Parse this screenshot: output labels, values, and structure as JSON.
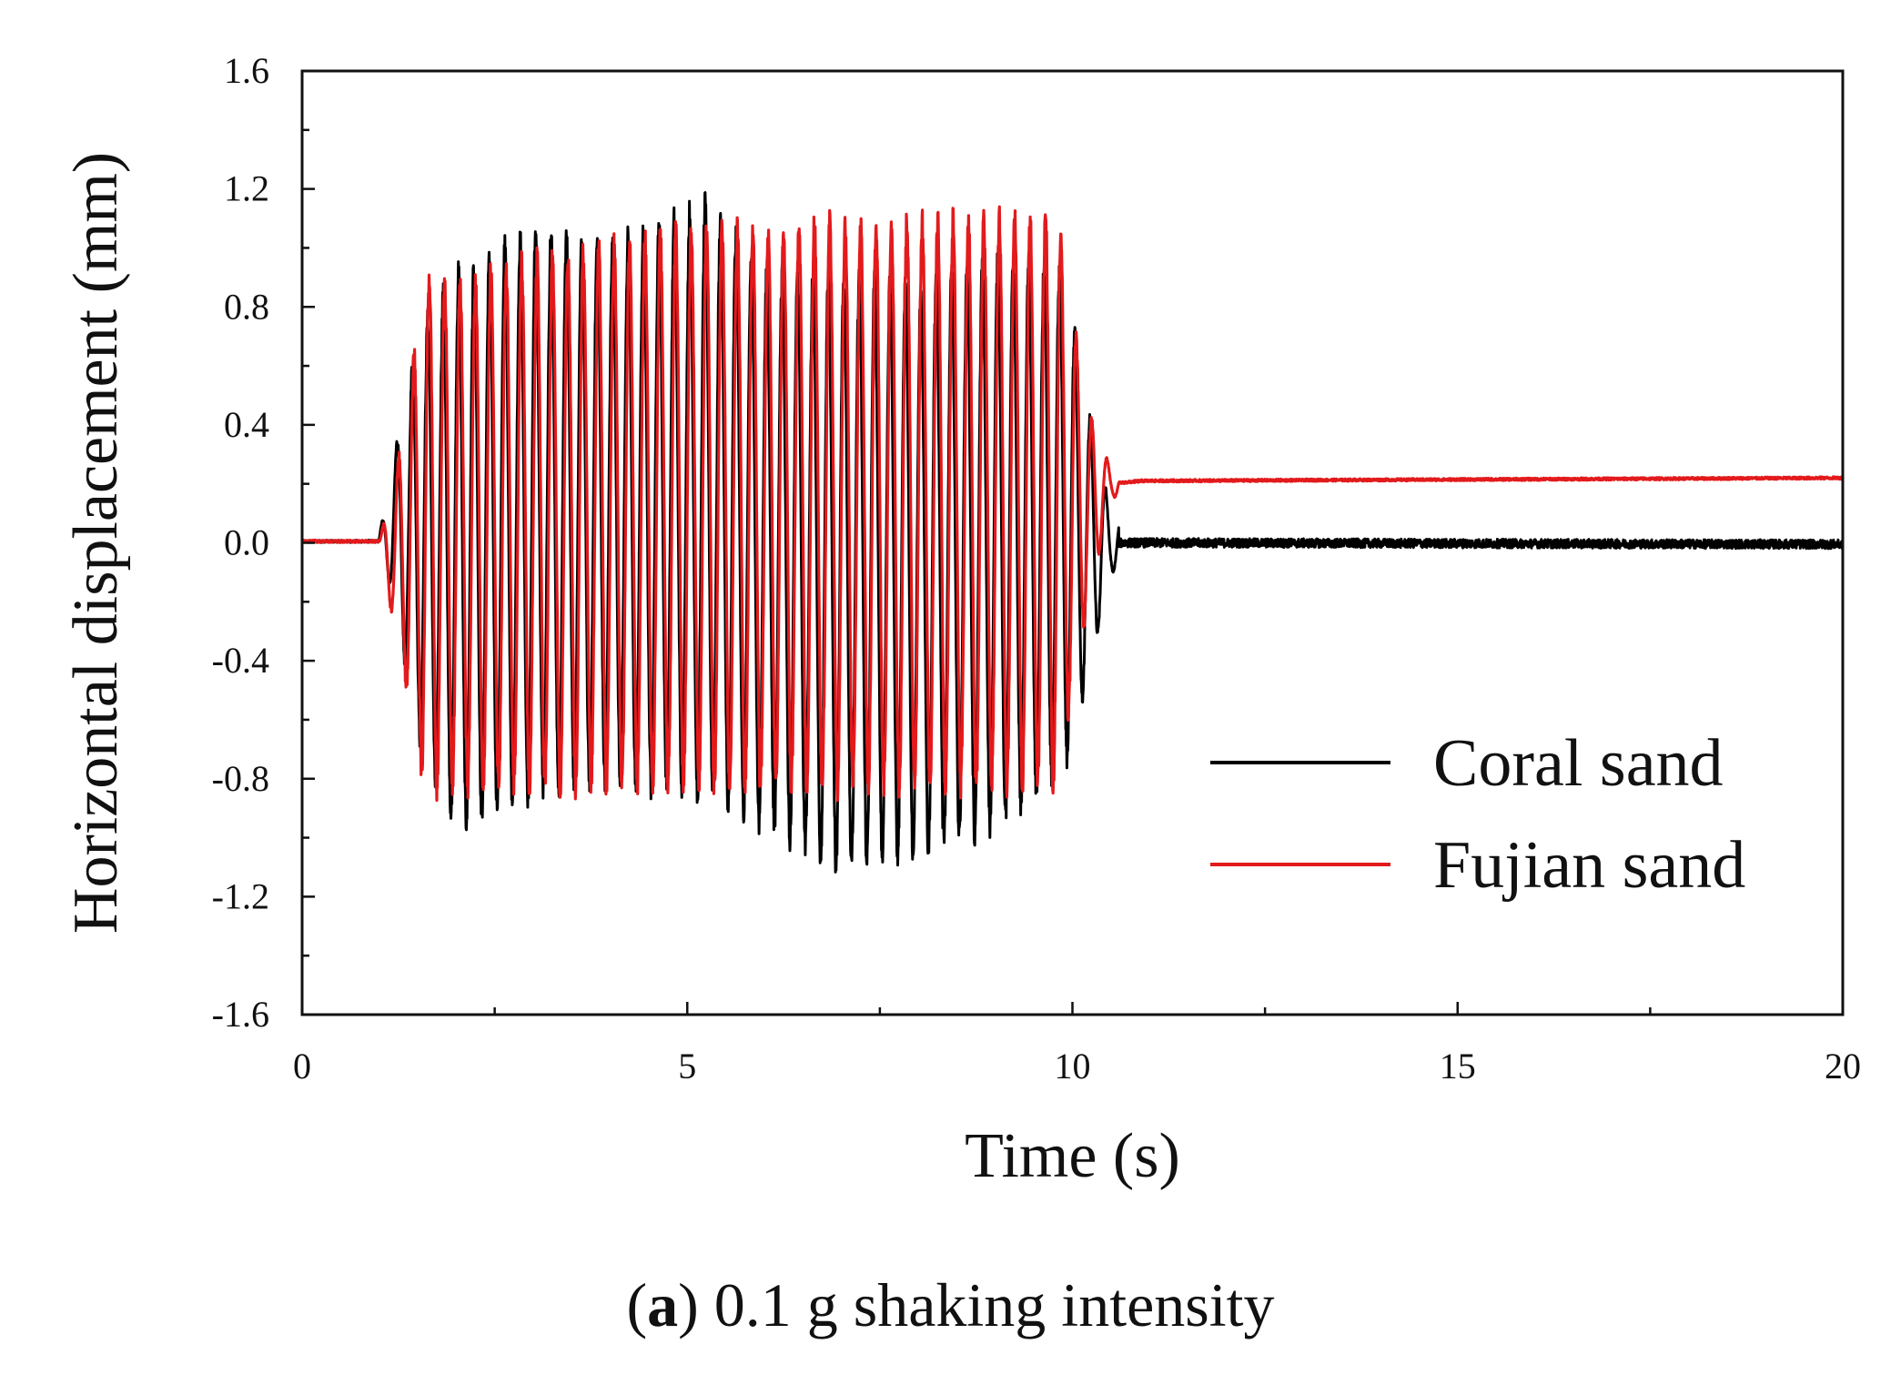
{
  "chart_data": {
    "type": "line",
    "title": "",
    "xlabel": "Time (s)",
    "ylabel": "Horizontal displacement (mm)",
    "xlim": [
      0,
      20
    ],
    "ylim": [
      -1.6,
      1.6
    ],
    "x_ticks": [
      0,
      5,
      10,
      15,
      20
    ],
    "x_tick_labels": [
      "0",
      "5",
      "10",
      "15",
      "20"
    ],
    "y_ticks": [
      1.6,
      1.2,
      0.8,
      0.4,
      0.0,
      -0.4,
      -0.8,
      -1.2,
      -1.6
    ],
    "y_tick_labels": [
      "1.6",
      "1.2",
      "0.8",
      "0.4",
      "0.0",
      "-0.4",
      "-0.8",
      "-1.2",
      "-1.6"
    ],
    "legend_position": "bottom-right",
    "signal": {
      "frequency_hz": 5,
      "shaking_start_s": 1.0,
      "shaking_end_s": 10.2
    },
    "series": [
      {
        "name": "Coral sand",
        "color": "#000000",
        "peak_positive_mm": 1.14,
        "peak_negative_mm": -1.1,
        "envelope_t": [
          0,
          1.0,
          1.2,
          1.5,
          2.0,
          3.0,
          4.0,
          5.3,
          6.0,
          7.0,
          8.0,
          9.0,
          9.9,
          10.2,
          10.5,
          11,
          20
        ],
        "envelope_pos": [
          0.02,
          0.02,
          0.3,
          0.7,
          0.9,
          1.05,
          1.0,
          1.14,
          0.9,
          0.9,
          0.85,
          0.95,
          0.9,
          0.45,
          0.1,
          0.03,
          0.01
        ],
        "envelope_neg": [
          -0.01,
          -0.01,
          -0.2,
          -0.65,
          -0.95,
          -0.85,
          -0.8,
          -0.85,
          -0.95,
          -1.1,
          -1.05,
          -0.95,
          -0.75,
          -0.45,
          -0.1,
          -0.03,
          -0.02
        ],
        "residual_mm": 0.01
      },
      {
        "name": "Fujian sand",
        "color": "#e31a1c",
        "peak_positive_mm": 1.1,
        "peak_negative_mm": -0.84,
        "envelope_t": [
          0,
          1.0,
          1.2,
          1.6,
          2.0,
          3.0,
          4.0,
          5.0,
          6.0,
          7.0,
          8.0,
          9.0,
          9.8,
          10.2,
          10.5,
          10.9,
          20
        ],
        "envelope_pos": [
          0.01,
          0.01,
          0.2,
          0.9,
          0.88,
          0.95,
          1.0,
          1.05,
          1.07,
          1.08,
          1.08,
          1.09,
          1.1,
          0.45,
          0.25,
          0.22,
          0.22
        ],
        "envelope_neg": [
          0.0,
          0.0,
          -0.3,
          -0.83,
          -0.82,
          -0.82,
          -0.82,
          -0.82,
          -0.82,
          -0.82,
          -0.82,
          -0.82,
          -0.8,
          -0.2,
          0.15,
          0.2,
          0.22
        ],
        "residual_mm": 0.22
      }
    ]
  },
  "caption": {
    "prefix_open": "(",
    "letter": "a",
    "prefix_close": ")",
    "text": " 0.1 g shaking intensity"
  }
}
